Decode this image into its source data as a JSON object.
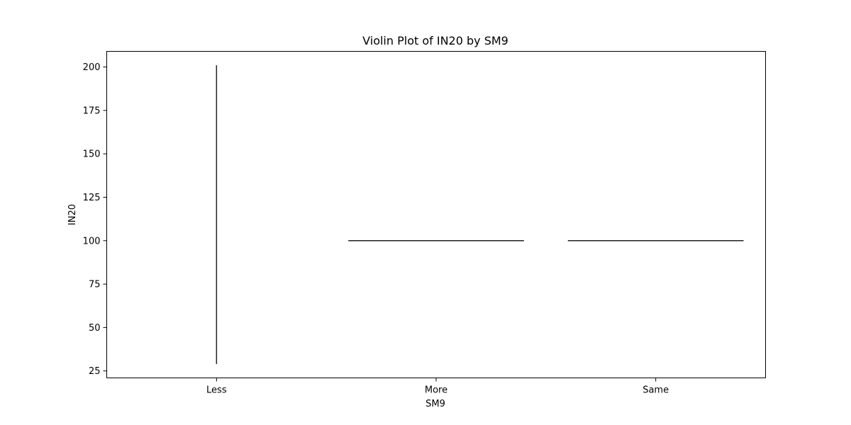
{
  "chart_data": {
    "type": "violin",
    "title": "Violin Plot of IN20 by SM9",
    "xlabel": "SM9",
    "ylabel": "IN20",
    "categories": [
      "Less",
      "More",
      "Same"
    ],
    "yticks": [
      25,
      50,
      75,
      100,
      125,
      150,
      175,
      200
    ],
    "ylim": [
      21,
      209
    ],
    "violins": [
      {
        "category": "Less",
        "orientation": "vertical",
        "min": 29,
        "max": 201
      },
      {
        "category": "More",
        "orientation": "horizontal",
        "value": 100
      },
      {
        "category": "Same",
        "orientation": "horizontal",
        "value": 100
      }
    ],
    "grid": false,
    "legend": "none",
    "line_color": "#222222"
  }
}
